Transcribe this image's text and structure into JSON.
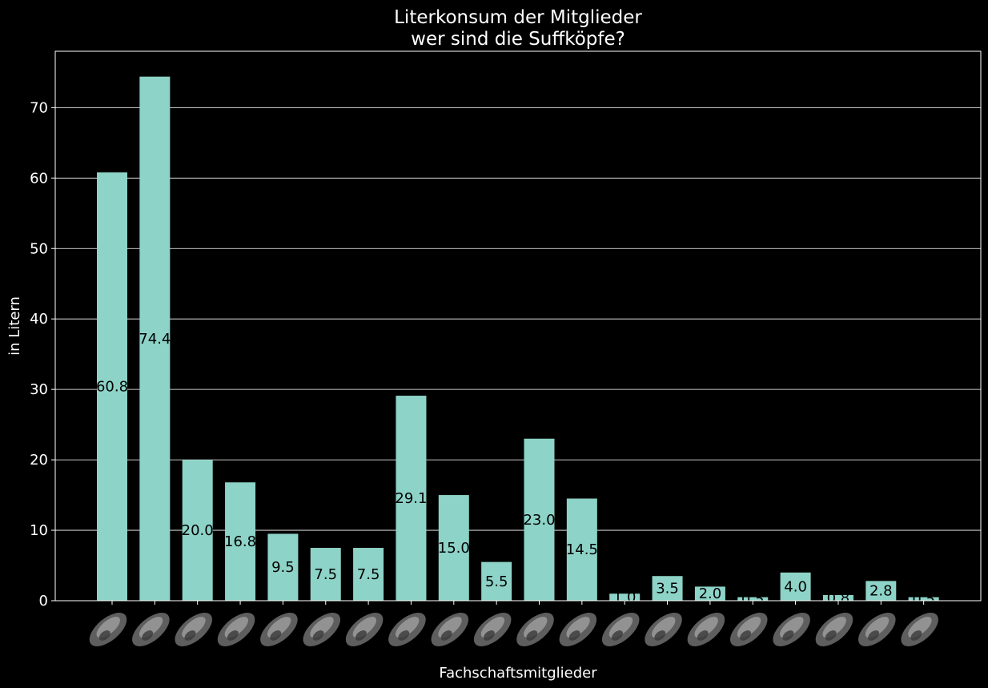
{
  "chart_data": {
    "type": "bar",
    "title_line1": "Literkonsum der Mitglieder",
    "title_line2": "wer sind die Suffköpfe?",
    "xlabel": "Fachschaftsmitglieder",
    "ylabel": "in Litern",
    "ylim": [
      0,
      78
    ],
    "yticks": [
      0,
      10,
      20,
      30,
      40,
      50,
      60,
      70
    ],
    "grid": "horizontal",
    "categories": [
      "",
      "",
      "",
      "",
      "",
      "",
      "",
      "",
      "",
      "",
      "",
      "",
      "",
      "",
      "",
      "",
      "",
      "",
      "",
      ""
    ],
    "values": [
      60.8,
      74.4,
      20.0,
      16.8,
      9.5,
      7.5,
      7.5,
      29.1,
      15.0,
      5.5,
      23.0,
      14.5,
      1.0,
      3.5,
      2.0,
      0.5,
      4.0,
      0.8,
      2.8,
      0.5
    ],
    "value_labels": [
      "60.8",
      "74.4",
      "20.0",
      "16.8",
      "9.5",
      "7.5",
      "7.5",
      "29.1",
      "15.0",
      "5.5",
      "23.0",
      "14.5",
      "1.0",
      "3.5",
      "2.0",
      "0.5",
      "4.0",
      "0.8",
      "2.8",
      "0.5"
    ],
    "bar_color": "#8dd3c7",
    "background": "#000000",
    "foreground": "#ffffff",
    "label_color": "#000000"
  }
}
